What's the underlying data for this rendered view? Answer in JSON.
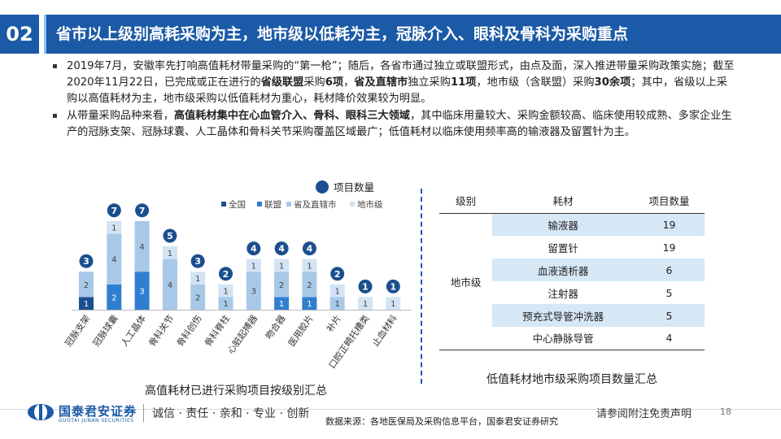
{
  "header": {
    "section_number": "02",
    "title": "省市以上级别高耗采购为主，地市级以低耗为主，冠脉介入、眼科及骨科为采购重点"
  },
  "bullets": [
    {
      "parts": [
        {
          "text": "2019年7月，安徽率先打响高值耗材带量采购的“第一枪”；随后，各省市通过独立或联盟形式，由点及面，深入推进带量采购政策实施；截至2020年11月22日，已完成或正在进行的",
          "bold": false
        },
        {
          "text": "省级联盟",
          "bold": true
        },
        {
          "text": "采购",
          "bold": false
        },
        {
          "text": "6项",
          "bold": true
        },
        {
          "text": "，",
          "bold": false
        },
        {
          "text": "省及直辖市",
          "bold": true
        },
        {
          "text": "独立采购",
          "bold": false
        },
        {
          "text": "11项",
          "bold": true
        },
        {
          "text": "，地市级（含联盟）采购",
          "bold": false
        },
        {
          "text": "30余项",
          "bold": true
        },
        {
          "text": "；其中，省级以上采购以高值耗材为主，地市级采购以低值耗材为重心，耗材降价效果较为明显。",
          "bold": false
        }
      ]
    },
    {
      "parts": [
        {
          "text": "从带量采购品种来看，",
          "bold": false
        },
        {
          "text": "高值耗材集中在心血管介入、骨科、眼科三大领域",
          "bold": true
        },
        {
          "text": "，其中临床用量较大、采购金额较高、临床使用较成熟、多家企业生产的冠脉支架、冠脉球囊、人工晶体和骨科关节采购覆盖区域最广；低值耗材以临床使用频率高的输液器及留置针为主。",
          "bold": false
        }
      ]
    }
  ],
  "chart_data": {
    "type": "bar",
    "stacked": true,
    "title": "高值耗材已进行采购项目按级别汇总",
    "categories": [
      "冠脉支架",
      "冠脉球囊",
      "人工晶体",
      "骨科关节",
      "骨科创伤",
      "骨科脊柱",
      "心脏起搏器",
      "吻合器",
      "医用胶片",
      "补片",
      "口腔正畸托槽类",
      "止血材料"
    ],
    "series": [
      {
        "name": "全国",
        "color": "#1b4f8f",
        "values": [
          1,
          0,
          0,
          0,
          0,
          0,
          0,
          0,
          0,
          0,
          0,
          0
        ]
      },
      {
        "name": "联盟",
        "color": "#2f7fd0",
        "values": [
          0,
          2,
          3,
          0,
          0,
          0,
          0,
          1,
          1,
          0,
          0,
          0
        ]
      },
      {
        "name": "省及直辖市",
        "color": "#a8c8e8",
        "values": [
          2,
          4,
          4,
          4,
          2,
          1,
          3,
          2,
          2,
          1,
          0,
          0
        ]
      },
      {
        "name": "地市级",
        "color": "#d2e4f4",
        "values": [
          0,
          1,
          0,
          1,
          1,
          1,
          1,
          1,
          1,
          1,
          1,
          1
        ]
      }
    ],
    "totals_legend": "项目数量",
    "totals": [
      3,
      7,
      7,
      5,
      3,
      2,
      4,
      4,
      4,
      2,
      1,
      1
    ],
    "grid": false
  },
  "legend_labels": {
    "totals": "项目数量"
  },
  "lowvalue_table": {
    "title": "低值耗材地市级采购项目数量汇总",
    "headers": [
      "级别",
      "耗材",
      "项目数量"
    ],
    "level": "地市级",
    "rows": [
      {
        "item": "输液器",
        "count": "19"
      },
      {
        "item": "留置针",
        "count": "19"
      },
      {
        "item": "血液透析器",
        "count": "6"
      },
      {
        "item": "注射器",
        "count": "5"
      },
      {
        "item": "预充式导管冲洗器",
        "count": "5"
      },
      {
        "item": "中心静脉导管",
        "count": "4"
      }
    ]
  },
  "footer": {
    "logo_cn": "国泰君安证券",
    "logo_en": "GUOTAI JUNAN SECURITIES",
    "slogan": "诚信 · 责任 · 亲和 · 专业 · 创新",
    "source": "数据来源：各地医保局及采购信息平台，国泰君安证券研究",
    "disclaimer": "请参阅附注免责声明",
    "page": "18"
  },
  "colors": {
    "brand": "#1b5aa6",
    "accent_light": "#8cc3ef",
    "table_shade": "#d6e7f5"
  }
}
